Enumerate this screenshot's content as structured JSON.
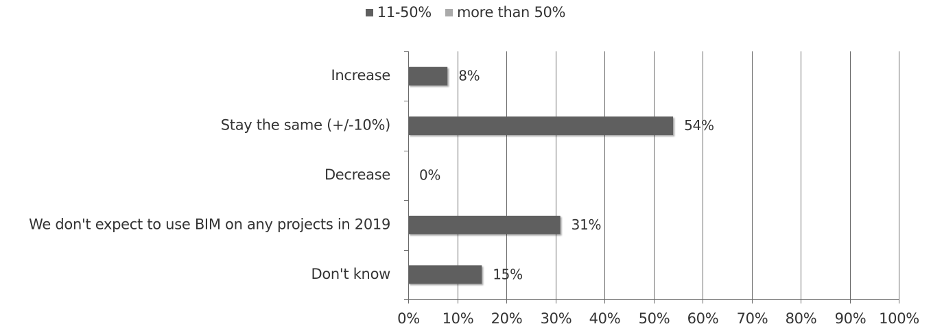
{
  "chart_data": {
    "type": "bar",
    "orientation": "horizontal",
    "categories": [
      "Increase",
      "Stay the same (+/-10%)",
      "Decrease",
      "We don't expect to use BIM on any projects in 2019",
      "Don't know"
    ],
    "series": [
      {
        "name": "11-50%",
        "color": "#5f5f5f",
        "values": [
          8,
          54,
          0,
          31,
          15
        ]
      },
      {
        "name": "more than 50%",
        "color": "#aaaaaa",
        "values": [
          0,
          0,
          0,
          0,
          0
        ]
      }
    ],
    "data_labels": [
      "8%",
      "54%",
      "0%",
      "31%",
      "15%"
    ],
    "xlim": [
      0,
      100
    ],
    "x_ticks": [
      "0%",
      "10%",
      "20%",
      "30%",
      "40%",
      "50%",
      "60%",
      "70%",
      "80%",
      "90%",
      "100%"
    ],
    "legend_position": "top",
    "grid": "vertical"
  }
}
